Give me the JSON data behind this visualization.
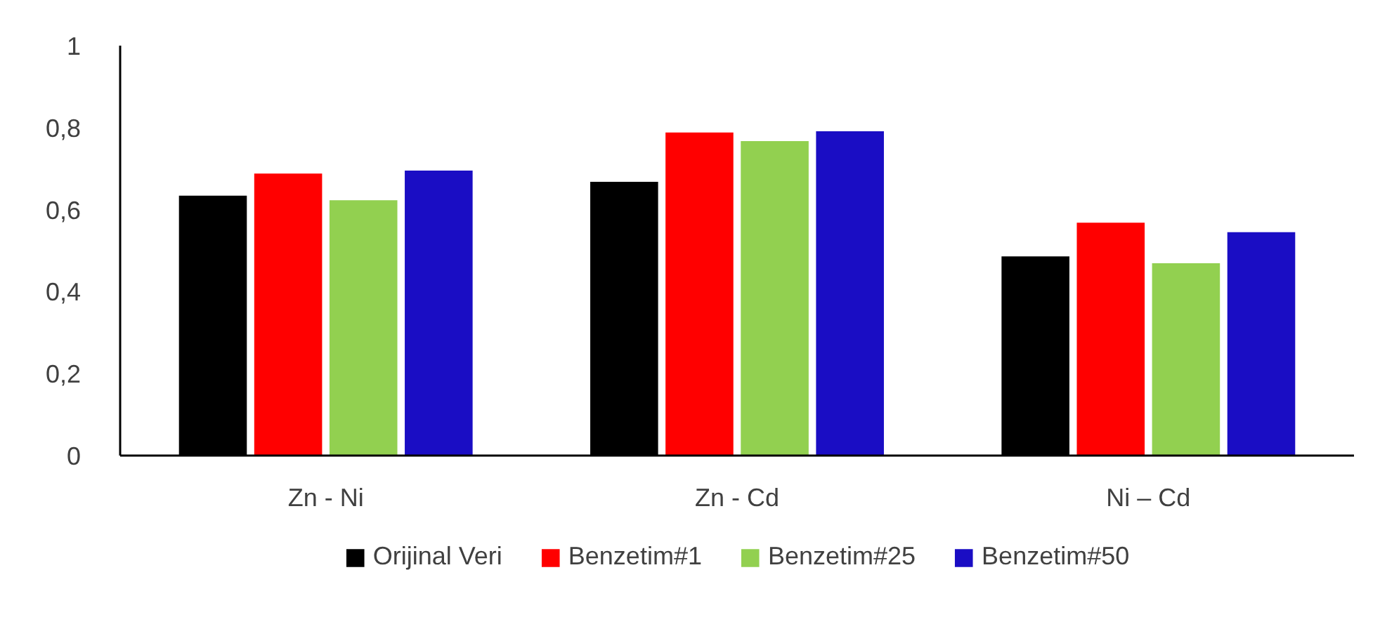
{
  "chart_data": {
    "type": "bar",
    "categories": [
      "Zn - Ni",
      "Zn - Cd",
      "Ni – Cd"
    ],
    "series": [
      {
        "name": "Orijinal Veri",
        "color": "#000000",
        "values": [
          0.634,
          0.668,
          0.486
        ]
      },
      {
        "name": "Benzetim#1",
        "color": "#ff0000",
        "values": [
          0.688,
          0.788,
          0.568
        ]
      },
      {
        "name": "Benzetim#25",
        "color": "#92d050",
        "values": [
          0.623,
          0.767,
          0.469
        ]
      },
      {
        "name": "Benzetim#50",
        "color": "#1a0dc4",
        "values": [
          0.695,
          0.791,
          0.545
        ]
      }
    ],
    "ylim": [
      0,
      1
    ],
    "yticks": [
      0,
      {
        "value": 0.2,
        "label": "0,2"
      },
      {
        "value": 0.4,
        "label": "0,4"
      },
      {
        "value": 0.6,
        "label": "0,6"
      },
      {
        "value": 0.8,
        "label": "0,8"
      },
      1
    ],
    "grid": false,
    "legend": "bottom"
  }
}
